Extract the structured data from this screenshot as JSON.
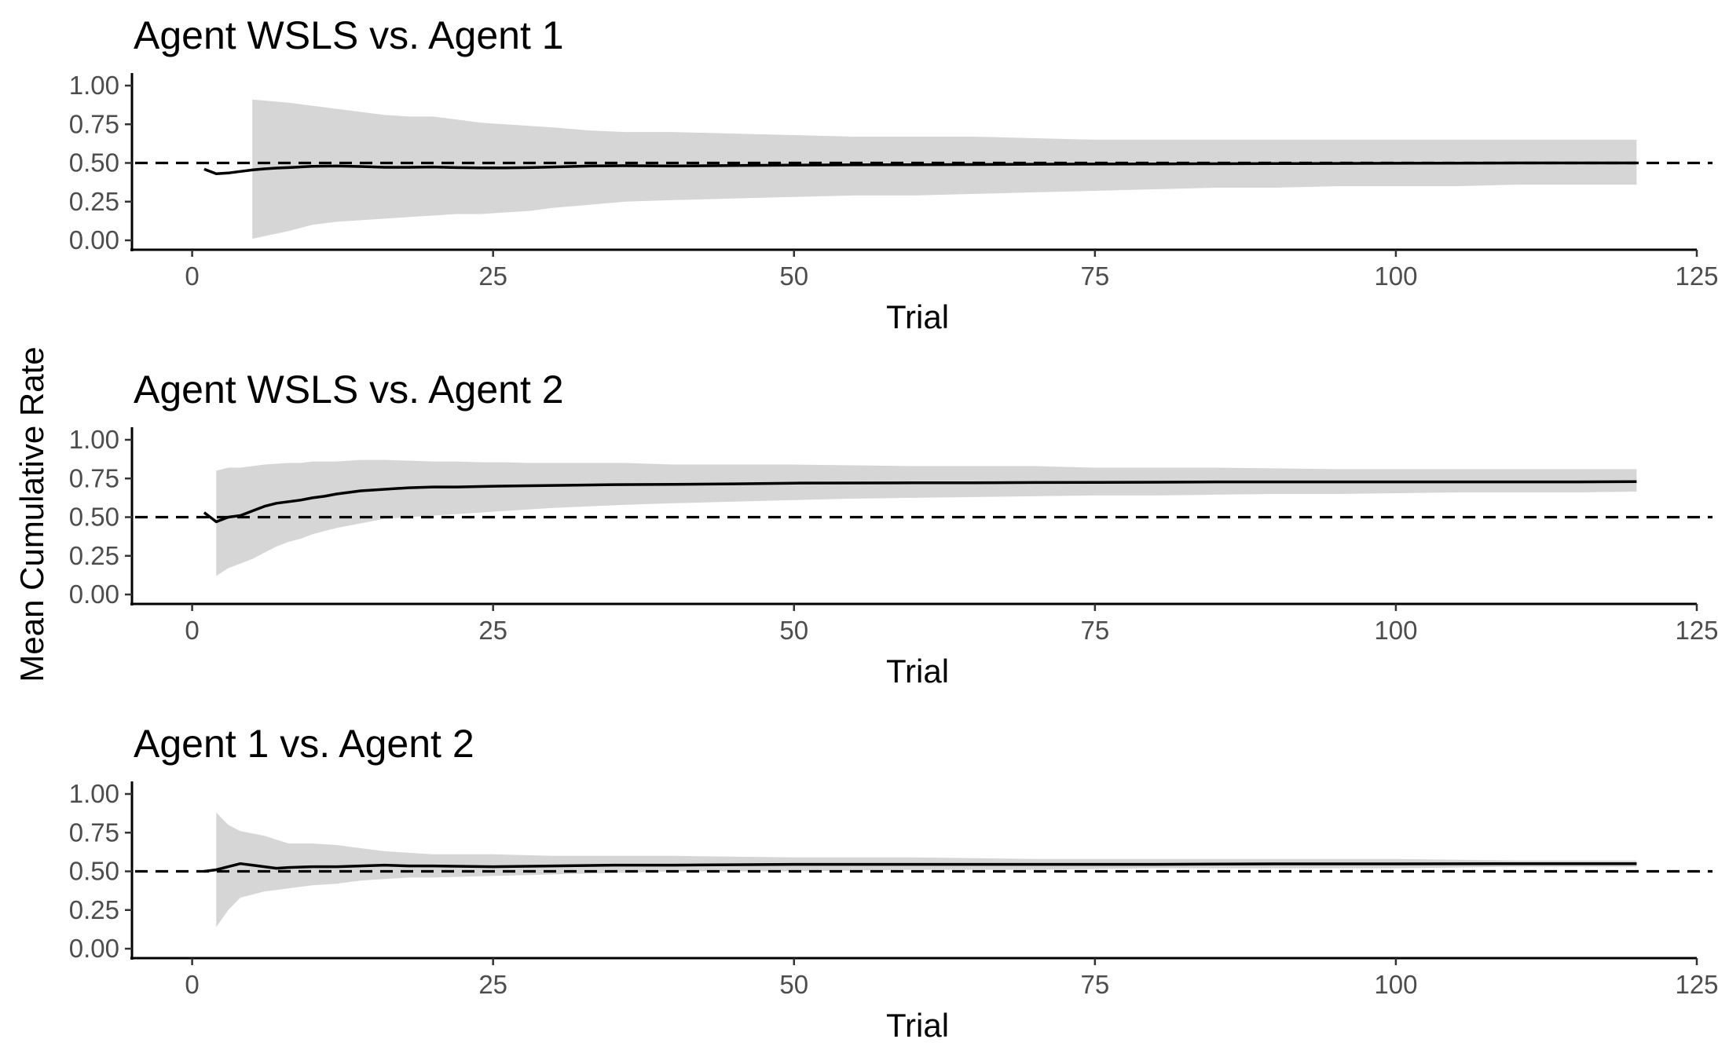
{
  "figure": {
    "ylabel": "Mean Cumulative Rate"
  },
  "chart_data": [
    {
      "type": "line",
      "title": "Agent WSLS vs. Agent 1",
      "xlabel": "Trial",
      "ylabel": "Mean Cumulative Rate",
      "xlim": [
        -5,
        125
      ],
      "ylim": [
        0,
        1
      ],
      "xticks": [
        0,
        25,
        50,
        75,
        100,
        125
      ],
      "yticks": [
        "0.00",
        "0.25",
        "0.50",
        "0.75",
        "1.00"
      ],
      "reference_line": 0.5,
      "grid": false,
      "series": [
        {
          "x": [
            1,
            2,
            3,
            4,
            5,
            6,
            7,
            8,
            10,
            12,
            14,
            16,
            18,
            20,
            22,
            24,
            26,
            28,
            30,
            33,
            36,
            40,
            45,
            50,
            55,
            60,
            65,
            70,
            75,
            80,
            85,
            90,
            95,
            100,
            105,
            110,
            115,
            120
          ],
          "mean": [
            0.46,
            0.43,
            0.435,
            0.445,
            0.455,
            0.462,
            0.467,
            0.47,
            0.478,
            0.48,
            0.477,
            0.472,
            0.472,
            0.474,
            0.47,
            0.468,
            0.468,
            0.47,
            0.474,
            0.48,
            0.482,
            0.48,
            0.484,
            0.486,
            0.488,
            0.489,
            0.49,
            0.492,
            0.493,
            0.494,
            0.495,
            0.496,
            0.497,
            0.498,
            0.499,
            0.5,
            0.5,
            0.5
          ]
        },
        {
          "x": [
            5,
            8,
            10,
            12,
            14,
            16,
            18,
            20,
            22,
            24,
            26,
            28,
            30,
            33,
            36,
            40,
            45,
            50,
            55,
            60,
            65,
            70,
            75,
            80,
            85,
            90,
            95,
            100,
            105,
            110,
            115,
            120
          ],
          "upper": [
            0.91,
            0.89,
            0.87,
            0.85,
            0.83,
            0.81,
            0.8,
            0.8,
            0.78,
            0.76,
            0.75,
            0.74,
            0.73,
            0.71,
            0.7,
            0.7,
            0.69,
            0.68,
            0.67,
            0.67,
            0.67,
            0.66,
            0.65,
            0.65,
            0.65,
            0.65,
            0.65,
            0.65,
            0.65,
            0.65,
            0.65,
            0.65
          ],
          "lower": [
            0.01,
            0.06,
            0.1,
            0.12,
            0.13,
            0.14,
            0.15,
            0.16,
            0.17,
            0.17,
            0.18,
            0.19,
            0.21,
            0.23,
            0.25,
            0.26,
            0.27,
            0.28,
            0.29,
            0.29,
            0.3,
            0.31,
            0.32,
            0.33,
            0.34,
            0.34,
            0.35,
            0.35,
            0.35,
            0.36,
            0.36,
            0.36
          ]
        }
      ]
    },
    {
      "type": "line",
      "title": "Agent WSLS vs. Agent 2",
      "xlabel": "Trial",
      "ylabel": "Mean Cumulative Rate",
      "xlim": [
        -5,
        125
      ],
      "ylim": [
        0,
        1
      ],
      "xticks": [
        0,
        25,
        50,
        75,
        100,
        125
      ],
      "yticks": [
        "0.00",
        "0.25",
        "0.50",
        "0.75",
        "1.00"
      ],
      "reference_line": 0.5,
      "grid": false,
      "series": [
        {
          "x": [
            1,
            2,
            3,
            4,
            5,
            6,
            7,
            8,
            9,
            10,
            11,
            12,
            13,
            14,
            15,
            16,
            18,
            20,
            22,
            25,
            30,
            35,
            40,
            45,
            50,
            55,
            60,
            65,
            70,
            75,
            80,
            85,
            90,
            95,
            100,
            105,
            110,
            115,
            120
          ],
          "mean": [
            0.53,
            0.47,
            0.5,
            0.51,
            0.54,
            0.57,
            0.59,
            0.6,
            0.61,
            0.625,
            0.635,
            0.65,
            0.66,
            0.67,
            0.675,
            0.68,
            0.69,
            0.695,
            0.695,
            0.7,
            0.705,
            0.71,
            0.712,
            0.715,
            0.72,
            0.721,
            0.722,
            0.722,
            0.724,
            0.725,
            0.726,
            0.728,
            0.728,
            0.728,
            0.728,
            0.728,
            0.728,
            0.728,
            0.73
          ]
        },
        {
          "x": [
            2,
            3,
            4,
            5,
            6,
            7,
            8,
            9,
            10,
            12,
            14,
            16,
            18,
            20,
            22,
            24,
            26,
            28,
            30,
            33,
            36,
            40,
            45,
            50,
            55,
            60,
            65,
            70,
            75,
            80,
            85,
            90,
            95,
            100,
            105,
            110,
            115,
            120
          ],
          "upper": [
            0.8,
            0.82,
            0.82,
            0.83,
            0.84,
            0.845,
            0.85,
            0.85,
            0.86,
            0.86,
            0.87,
            0.87,
            0.865,
            0.86,
            0.86,
            0.855,
            0.855,
            0.85,
            0.85,
            0.85,
            0.85,
            0.84,
            0.84,
            0.84,
            0.835,
            0.83,
            0.83,
            0.83,
            0.82,
            0.82,
            0.82,
            0.815,
            0.81,
            0.81,
            0.81,
            0.81,
            0.81,
            0.81
          ],
          "lower": [
            0.12,
            0.17,
            0.2,
            0.23,
            0.27,
            0.31,
            0.34,
            0.36,
            0.39,
            0.43,
            0.46,
            0.49,
            0.5,
            0.51,
            0.52,
            0.53,
            0.54,
            0.55,
            0.56,
            0.57,
            0.58,
            0.59,
            0.6,
            0.61,
            0.62,
            0.625,
            0.63,
            0.635,
            0.64,
            0.64,
            0.645,
            0.65,
            0.65,
            0.655,
            0.66,
            0.66,
            0.66,
            0.665
          ]
        }
      ]
    },
    {
      "type": "line",
      "title": "Agent 1 vs. Agent 2",
      "xlabel": "Trial",
      "ylabel": "Mean Cumulative Rate",
      "xlim": [
        -5,
        125
      ],
      "ylim": [
        0,
        1
      ],
      "xticks": [
        0,
        25,
        50,
        75,
        100,
        125
      ],
      "yticks": [
        "0.00",
        "0.25",
        "0.50",
        "0.75",
        "1.00"
      ],
      "reference_line": 0.5,
      "grid": false,
      "series": [
        {
          "x": [
            1,
            2,
            3,
            4,
            5,
            6,
            7,
            8,
            10,
            12,
            14,
            16,
            18,
            20,
            25,
            30,
            35,
            40,
            50,
            60,
            70,
            80,
            90,
            100,
            110,
            120
          ],
          "mean": [
            0.5,
            0.51,
            0.53,
            0.55,
            0.54,
            0.53,
            0.52,
            0.525,
            0.53,
            0.53,
            0.535,
            0.54,
            0.535,
            0.535,
            0.53,
            0.535,
            0.54,
            0.54,
            0.545,
            0.545,
            0.545,
            0.545,
            0.548,
            0.548,
            0.55,
            0.55
          ]
        },
        {
          "x": [
            2,
            3,
            4,
            6,
            8,
            10,
            12,
            14,
            16,
            18,
            20,
            25,
            30,
            35,
            40,
            50,
            60,
            70,
            80,
            90,
            100,
            110,
            120
          ],
          "upper": [
            0.88,
            0.8,
            0.76,
            0.73,
            0.68,
            0.68,
            0.67,
            0.65,
            0.63,
            0.62,
            0.61,
            0.61,
            0.6,
            0.6,
            0.6,
            0.59,
            0.59,
            0.58,
            0.58,
            0.58,
            0.58,
            0.57,
            0.57
          ],
          "lower": [
            0.14,
            0.25,
            0.33,
            0.37,
            0.39,
            0.41,
            0.42,
            0.44,
            0.45,
            0.46,
            0.46,
            0.47,
            0.48,
            0.49,
            0.5,
            0.5,
            0.51,
            0.51,
            0.52,
            0.52,
            0.52,
            0.53,
            0.53
          ]
        }
      ]
    }
  ]
}
